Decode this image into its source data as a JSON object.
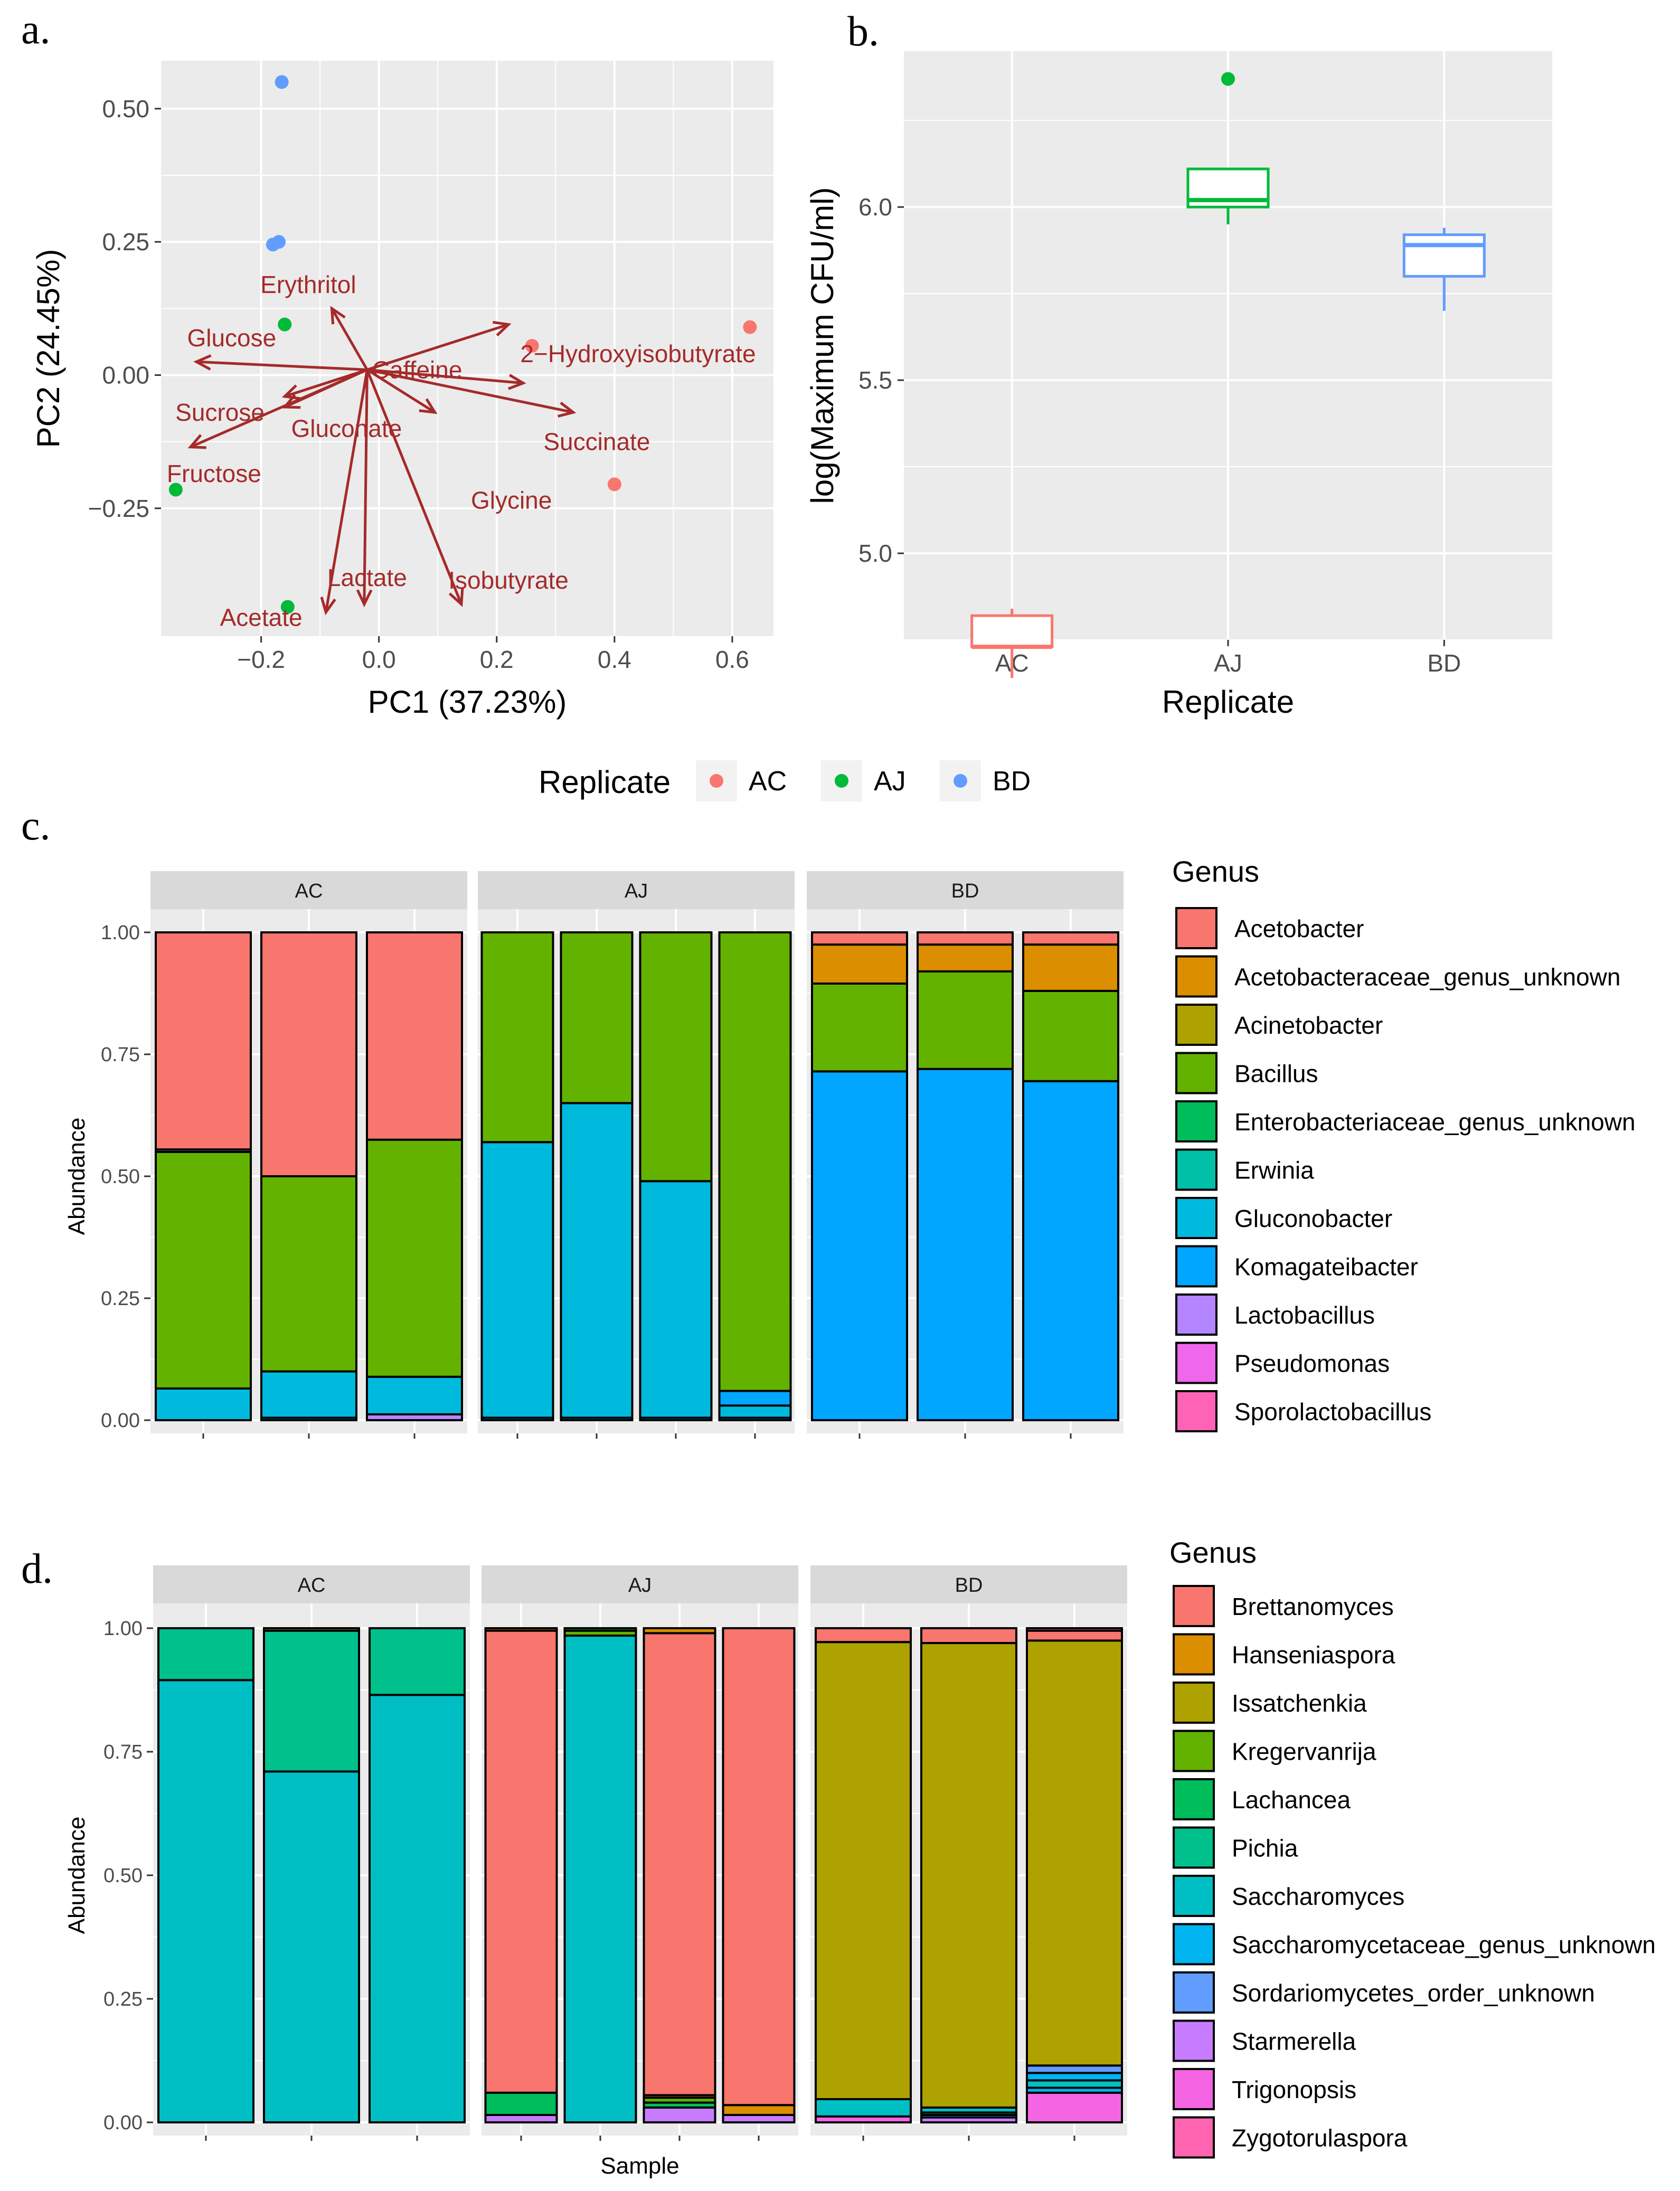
{
  "panel_labels": {
    "a": "a.",
    "b": "b.",
    "c": "c.",
    "d": "d."
  },
  "pca_legend": {
    "title": "Replicate",
    "entries": [
      "AC",
      "AJ",
      "BD"
    ]
  },
  "colors": {
    "AC": "#F8766D",
    "AJ": "#00BA38",
    "BD": "#619CFF",
    "arrow": "#A52A2A",
    "panel_bg": "#EBEBEB",
    "strip_bg": "#D9D9D9",
    "grid": "#FFFFFF"
  },
  "icons": {
    "arrow": "arrow-icon",
    "legend_key": "legend-swatch"
  },
  "chart_data": [
    {
      "id": "a",
      "type": "scatter",
      "subtype": "pca-biplot",
      "xlabel": "PC1 (37.23%)",
      "ylabel": "PC2 (24.45%)",
      "xlim": [
        -0.37,
        0.67
      ],
      "ylim": [
        -0.49,
        0.59
      ],
      "xticks": [
        -0.2,
        0.0,
        0.2,
        0.4,
        0.6
      ],
      "xtick_labels": [
        "−0.2",
        "0.0",
        "0.2",
        "0.4",
        "0.6"
      ],
      "yticks": [
        -0.25,
        0.0,
        0.25,
        0.5
      ],
      "ytick_labels": [
        "−0.25",
        "0.00",
        "0.25",
        "0.50"
      ],
      "grid": true,
      "points": [
        {
          "group": "AC",
          "x": 0.63,
          "y": 0.09
        },
        {
          "group": "AC",
          "x": 0.26,
          "y": 0.055
        },
        {
          "group": "AC",
          "x": 0.4,
          "y": -0.205
        },
        {
          "group": "AJ",
          "x": -0.16,
          "y": 0.095
        },
        {
          "group": "AJ",
          "x": -0.345,
          "y": -0.215
        },
        {
          "group": "AJ",
          "x": -0.155,
          "y": -0.435
        },
        {
          "group": "BD",
          "x": -0.165,
          "y": 0.55
        },
        {
          "group": "BD",
          "x": -0.18,
          "y": 0.245
        },
        {
          "group": "BD",
          "x": -0.17,
          "y": 0.25
        }
      ],
      "arrow_origin": [
        -0.02,
        0.01
      ],
      "arrows": [
        {
          "label": "Erythritol",
          "x": -0.08,
          "y": 0.125,
          "lx": -0.12,
          "ly": 0.17
        },
        {
          "label": "Glucose",
          "x": -0.31,
          "y": 0.025,
          "lx": -0.25,
          "ly": 0.07
        },
        {
          "label": "Caffeine",
          "x": 0.22,
          "y": 0.095,
          "lx": 0.065,
          "ly": 0.01
        },
        {
          "label": "2−Hydroxyisobutyrate",
          "x": 0.245,
          "y": -0.015,
          "lx": 0.44,
          "ly": 0.04
        },
        {
          "label": "Succinate",
          "x": 0.33,
          "y": -0.07,
          "lx": 0.37,
          "ly": -0.125
        },
        {
          "label": "Sucrose",
          "x": -0.16,
          "y": -0.06,
          "lx": -0.27,
          "ly": -0.07
        },
        {
          "label": "Gluconate",
          "x": -0.16,
          "y": -0.04,
          "lx": -0.055,
          "ly": -0.1
        },
        {
          "label": "Fructose",
          "x": -0.32,
          "y": -0.135,
          "lx": -0.28,
          "ly": -0.185
        },
        {
          "label": "Glycine",
          "x": 0.095,
          "y": -0.07,
          "lx": 0.225,
          "ly": -0.235
        },
        {
          "label": "Lactate",
          "x": -0.025,
          "y": -0.43,
          "lx": -0.02,
          "ly": -0.38
        },
        {
          "label": "Isobutyrate",
          "x": 0.14,
          "y": -0.43,
          "lx": 0.22,
          "ly": -0.385
        },
        {
          "label": "Acetate",
          "x": -0.09,
          "y": -0.445,
          "lx": -0.2,
          "ly": -0.455
        }
      ]
    },
    {
      "id": "b",
      "type": "box",
      "xlabel": "Replicate",
      "ylabel": "log(Maximum CFU/ml)",
      "categories": [
        "AC",
        "AJ",
        "BD"
      ],
      "ylim": [
        4.75,
        6.45
      ],
      "yticks": [
        5.0,
        5.5,
        6.0
      ],
      "ytick_labels": [
        "5.0",
        "5.5",
        "6.0"
      ],
      "grid": true,
      "boxes": [
        {
          "group": "AC",
          "min": 4.64,
          "q1": 4.73,
          "median": 4.73,
          "q3": 4.82,
          "max": 4.84,
          "outliers": []
        },
        {
          "group": "AJ",
          "min": 5.95,
          "q1": 6.0,
          "median": 6.02,
          "q3": 6.11,
          "max": 6.11,
          "outliers": [
            6.37
          ]
        },
        {
          "group": "BD",
          "min": 5.7,
          "q1": 5.8,
          "median": 5.89,
          "q3": 5.92,
          "max": 5.94,
          "outliers": []
        }
      ]
    },
    {
      "id": "c",
      "type": "bar",
      "stacked": true,
      "ylabel": "Abundance",
      "xlabel": "",
      "ylim": [
        0,
        1
      ],
      "yticks": [
        0,
        0.25,
        0.5,
        0.75,
        1.0
      ],
      "ytick_labels": [
        "0.00",
        "0.25",
        "0.50",
        "0.75",
        "1.00"
      ],
      "legend": {
        "title": "Genus",
        "items": [
          {
            "name": "Acetobacter",
            "color": "#F8766D"
          },
          {
            "name": "Acetobacteraceae_genus_unknown",
            "color": "#DB8E00"
          },
          {
            "name": "Acinetobacter",
            "color": "#AEA200"
          },
          {
            "name": "Bacillus",
            "color": "#64B200"
          },
          {
            "name": "Enterobacteriaceae_genus_unknown",
            "color": "#00BD5C"
          },
          {
            "name": "Erwinia",
            "color": "#00C1A7"
          },
          {
            "name": "Gluconobacter",
            "color": "#00BADE"
          },
          {
            "name": "Komagateibacter",
            "color": "#00A6FF"
          },
          {
            "name": "Lactobacillus",
            "color": "#B385FF"
          },
          {
            "name": "Pseudomonas",
            "color": "#EF67EB"
          },
          {
            "name": "Sporolactobacillus",
            "color": "#FF63B6"
          }
        ]
      },
      "facets": [
        {
          "name": "AC",
          "bars": [
            [
              {
                "g": "Gluconobacter",
                "v": 0.065
              },
              {
                "g": "Bacillus",
                "v": 0.485
              },
              {
                "g": "Lactobacillus",
                "v": 0.005
              },
              {
                "g": "Acetobacter",
                "v": 0.445
              }
            ],
            [
              {
                "g": "Komagateibacter",
                "v": 0.005
              },
              {
                "g": "Gluconobacter",
                "v": 0.095
              },
              {
                "g": "Bacillus",
                "v": 0.4
              },
              {
                "g": "Acetobacter",
                "v": 0.5
              }
            ],
            [
              {
                "g": "Lactobacillus",
                "v": 0.012
              },
              {
                "g": "Gluconobacter",
                "v": 0.077
              },
              {
                "g": "Bacillus",
                "v": 0.486
              },
              {
                "g": "Acetobacter",
                "v": 0.425
              }
            ]
          ]
        },
        {
          "name": "AJ",
          "bars": [
            [
              {
                "g": "Komagateibacter",
                "v": 0.005
              },
              {
                "g": "Gluconobacter",
                "v": 0.565
              },
              {
                "g": "Bacillus",
                "v": 0.43
              }
            ],
            [
              {
                "g": "Komagateibacter",
                "v": 0.005
              },
              {
                "g": "Gluconobacter",
                "v": 0.645
              },
              {
                "g": "Bacillus",
                "v": 0.35
              }
            ],
            [
              {
                "g": "Komagateibacter",
                "v": 0.005
              },
              {
                "g": "Gluconobacter",
                "v": 0.485
              },
              {
                "g": "Bacillus",
                "v": 0.51
              }
            ],
            [
              {
                "g": "Komagateibacter",
                "v": 0.005
              },
              {
                "g": "Gluconobacter",
                "v": 0.025
              },
              {
                "g": "Komagateibacter",
                "v": 0.03
              },
              {
                "g": "Bacillus",
                "v": 0.94
              }
            ]
          ]
        },
        {
          "name": "BD",
          "bars": [
            [
              {
                "g": "Komagateibacter",
                "v": 0.715
              },
              {
                "g": "Bacillus",
                "v": 0.18
              },
              {
                "g": "Acetobacteraceae_genus_unknown",
                "v": 0.08
              },
              {
                "g": "Acetobacter",
                "v": 0.025
              }
            ],
            [
              {
                "g": "Komagateibacter",
                "v": 0.72
              },
              {
                "g": "Bacillus",
                "v": 0.2
              },
              {
                "g": "Acetobacteraceae_genus_unknown",
                "v": 0.055
              },
              {
                "g": "Acetobacter",
                "v": 0.025
              }
            ],
            [
              {
                "g": "Komagateibacter",
                "v": 0.695
              },
              {
                "g": "Bacillus",
                "v": 0.185
              },
              {
                "g": "Acetobacteraceae_genus_unknown",
                "v": 0.095
              },
              {
                "g": "Acetobacter",
                "v": 0.025
              }
            ]
          ]
        }
      ]
    },
    {
      "id": "d",
      "type": "bar",
      "stacked": true,
      "ylabel": "Abundance",
      "xlabel": "Sample",
      "ylim": [
        0,
        1
      ],
      "yticks": [
        0,
        0.25,
        0.5,
        0.75,
        1.0
      ],
      "ytick_labels": [
        "0.00",
        "0.25",
        "0.50",
        "0.75",
        "1.00"
      ],
      "legend": {
        "title": "Genus",
        "items": [
          {
            "name": "Brettanomyces",
            "color": "#F8766D"
          },
          {
            "name": "Hanseniaspora",
            "color": "#DB8E00"
          },
          {
            "name": "Issatchenkia",
            "color": "#AEA200"
          },
          {
            "name": "Kregervanrija",
            "color": "#64B200"
          },
          {
            "name": "Lachancea",
            "color": "#00BD5C"
          },
          {
            "name": "Pichia",
            "color": "#00C08B"
          },
          {
            "name": "Saccharomyces",
            "color": "#00BFC4"
          },
          {
            "name": "Saccharomycetaceae_genus_unknown",
            "color": "#00B4F0"
          },
          {
            "name": "Sordariomycetes_order_unknown",
            "color": "#619CFF"
          },
          {
            "name": "Starmerella",
            "color": "#C77CFF"
          },
          {
            "name": "Trigonopsis",
            "color": "#F564E3"
          },
          {
            "name": "Zygotorulaspora",
            "color": "#FF64B0"
          }
        ]
      },
      "facets": [
        {
          "name": "AC",
          "bars": [
            [
              {
                "g": "Saccharomyces",
                "v": 0.895
              },
              {
                "g": "Pichia",
                "v": 0.105
              }
            ],
            [
              {
                "g": "Saccharomyces",
                "v": 0.71
              },
              {
                "g": "Pichia",
                "v": 0.285
              },
              {
                "g": "Hanseniaspora",
                "v": 0.005
              }
            ],
            [
              {
                "g": "Saccharomyces",
                "v": 0.865
              },
              {
                "g": "Pichia",
                "v": 0.135
              }
            ]
          ]
        },
        {
          "name": "AJ",
          "bars": [
            [
              {
                "g": "Starmerella",
                "v": 0.015
              },
              {
                "g": "Lachancea",
                "v": 0.045
              },
              {
                "g": "Brettanomyces",
                "v": 0.935
              },
              {
                "g": "Hanseniaspora",
                "v": 0.005
              }
            ],
            [
              {
                "g": "Saccharomyces",
                "v": 0.985
              },
              {
                "g": "Kregervanrija",
                "v": 0.01
              },
              {
                "g": "Lachancea",
                "v": 0.005
              }
            ],
            [
              {
                "g": "Starmerella",
                "v": 0.03
              },
              {
                "g": "Lachancea",
                "v": 0.01
              },
              {
                "g": "Kregervanrija",
                "v": 0.01
              },
              {
                "g": "Hanseniaspora",
                "v": 0.005
              },
              {
                "g": "Brettanomyces",
                "v": 0.935
              },
              {
                "g": "Hanseniaspora",
                "v": 0.01
              }
            ],
            [
              {
                "g": "Starmerella",
                "v": 0.015
              },
              {
                "g": "Hanseniaspora",
                "v": 0.02
              },
              {
                "g": "Brettanomyces",
                "v": 0.965
              }
            ]
          ]
        },
        {
          "name": "BD",
          "bars": [
            [
              {
                "g": "Trigonopsis",
                "v": 0.012
              },
              {
                "g": "Saccharomyces",
                "v": 0.035
              },
              {
                "g": "Issatchenkia",
                "v": 0.925
              },
              {
                "g": "Brettanomyces",
                "v": 0.028
              }
            ],
            [
              {
                "g": "Starmerella",
                "v": 0.01
              },
              {
                "g": "Saccharomycetaceae_genus_unknown",
                "v": 0.005
              },
              {
                "g": "Lachancea",
                "v": 0.005
              },
              {
                "g": "Saccharomyces",
                "v": 0.01
              },
              {
                "g": "Issatchenkia",
                "v": 0.94
              },
              {
                "g": "Brettanomyces",
                "v": 0.03
              }
            ],
            [
              {
                "g": "Trigonopsis",
                "v": 0.06
              },
              {
                "g": "Saccharomycetaceae_genus_unknown",
                "v": 0.01
              },
              {
                "g": "Saccharomyces",
                "v": 0.015
              },
              {
                "g": "Saccharomycetaceae_genus_unknown",
                "v": 0.015
              },
              {
                "g": "Sordariomycetes_order_unknown",
                "v": 0.015
              },
              {
                "g": "Issatchenkia",
                "v": 0.86
              },
              {
                "g": "Brettanomyces",
                "v": 0.02
              },
              {
                "g": "Trigonopsis",
                "v": 0.005
              }
            ]
          ]
        }
      ]
    }
  ]
}
